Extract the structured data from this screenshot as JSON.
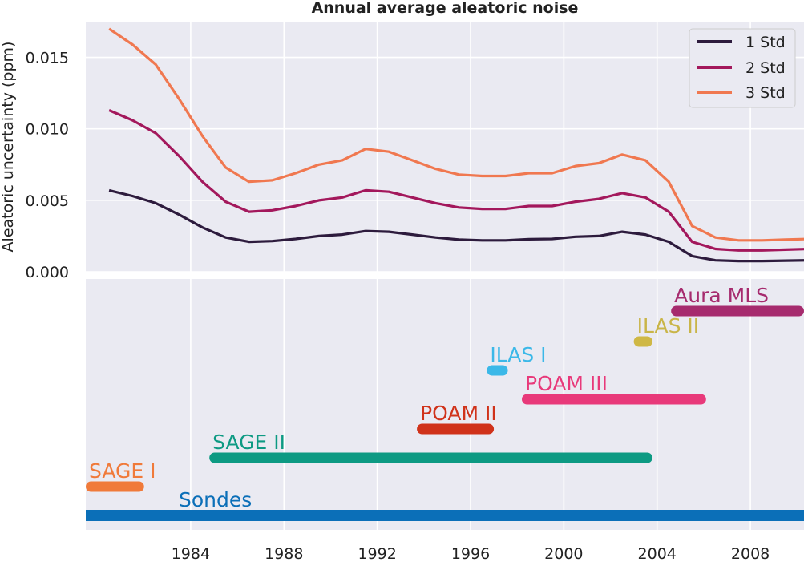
{
  "chart_data": [
    {
      "type": "line",
      "title": "Annual average aleatoric noise",
      "xlabel": "",
      "ylabel": "Aleatoric uncertainty (ppm)",
      "xlim": [
        1979.5,
        2010.3
      ],
      "ylim": [
        0.0,
        0.0175
      ],
      "grid": true,
      "legend": "top-right",
      "y_ticks": [
        {
          "value": 0.0,
          "label": "0.000"
        },
        {
          "value": 0.005,
          "label": "0.005"
        },
        {
          "value": 0.01,
          "label": "0.010"
        },
        {
          "value": 0.015,
          "label": "0.015"
        }
      ],
      "x": [
        1980.5,
        1981.5,
        1982.5,
        1983.5,
        1984.5,
        1985.5,
        1986.5,
        1987.5,
        1988.5,
        1989.5,
        1990.5,
        1991.5,
        1992.5,
        1993.5,
        1994.5,
        1995.5,
        1996.5,
        1997.5,
        1998.5,
        1999.5,
        2000.5,
        2001.5,
        2002.5,
        2003.5,
        2004.5,
        2005.5,
        2006.5,
        2007.5,
        2008.5,
        2009.5,
        2010.5
      ],
      "series": [
        {
          "name": "1 Std",
          "color": "#2d1b3d",
          "values": [
            0.0057,
            0.0053,
            0.0048,
            0.004,
            0.0031,
            0.0024,
            0.0021,
            0.00215,
            0.0023,
            0.0025,
            0.0026,
            0.00285,
            0.0028,
            0.0026,
            0.0024,
            0.00225,
            0.0022,
            0.0022,
            0.00228,
            0.0023,
            0.00245,
            0.0025,
            0.0028,
            0.0026,
            0.0021,
            0.0011,
            0.0008,
            0.00075,
            0.00075,
            0.00078,
            0.0008
          ]
        },
        {
          "name": "2 Std",
          "color": "#a3185c",
          "values": [
            0.0113,
            0.0106,
            0.0097,
            0.0081,
            0.0063,
            0.0049,
            0.0042,
            0.0043,
            0.0046,
            0.005,
            0.0052,
            0.0057,
            0.0056,
            0.0052,
            0.0048,
            0.0045,
            0.0044,
            0.0044,
            0.0046,
            0.0046,
            0.0049,
            0.0051,
            0.0055,
            0.0052,
            0.0042,
            0.0021,
            0.0016,
            0.0015,
            0.0015,
            0.00155,
            0.0016
          ]
        },
        {
          "name": "3 Std",
          "color": "#f07850",
          "values": [
            0.017,
            0.0159,
            0.0145,
            0.0121,
            0.0095,
            0.0073,
            0.0063,
            0.0064,
            0.0069,
            0.0075,
            0.0078,
            0.0086,
            0.0084,
            0.0078,
            0.0072,
            0.0068,
            0.0067,
            0.0067,
            0.0069,
            0.0069,
            0.0074,
            0.0076,
            0.0082,
            0.0078,
            0.0063,
            0.0032,
            0.0024,
            0.0022,
            0.0022,
            0.00225,
            0.0023
          ]
        }
      ]
    },
    {
      "type": "timeline",
      "title": "",
      "xlabel": "",
      "xlim": [
        1979.5,
        2010.3
      ],
      "x_ticks": [
        1984,
        1988,
        1992,
        1996,
        2000,
        2004,
        2008
      ],
      "grid": true,
      "instruments": [
        {
          "name": "Aura MLS",
          "start": 2004.6,
          "end": 2010.3,
          "color": "#a62b6e",
          "label_color": "#a62b6e"
        },
        {
          "name": "ILAS II",
          "start": 2003.0,
          "end": 2003.8,
          "color": "#cfb845",
          "label_color": "#c9b548"
        },
        {
          "name": "ILAS I",
          "start": 1996.7,
          "end": 1997.6,
          "color": "#3bb8e8",
          "label_color": "#3bb8e8"
        },
        {
          "name": "POAM III",
          "start": 1998.2,
          "end": 2006.1,
          "color": "#e8397a",
          "label_color": "#e8397a"
        },
        {
          "name": "POAM II",
          "start": 1993.7,
          "end": 1997.0,
          "color": "#d0321a",
          "label_color": "#d0321a"
        },
        {
          "name": "SAGE II",
          "start": 1984.8,
          "end": 2003.8,
          "color": "#0d9a83",
          "label_color": "#0d9a83"
        },
        {
          "name": "SAGE I",
          "start": 1979.5,
          "end": 1982.0,
          "color": "#f07a3a",
          "label_color": "#f07a3a"
        },
        {
          "name": "Sondes",
          "start": 1979.5,
          "end": 2010.3,
          "color": "#0b6fb8",
          "label_color": "#0b6fb8"
        }
      ]
    }
  ]
}
